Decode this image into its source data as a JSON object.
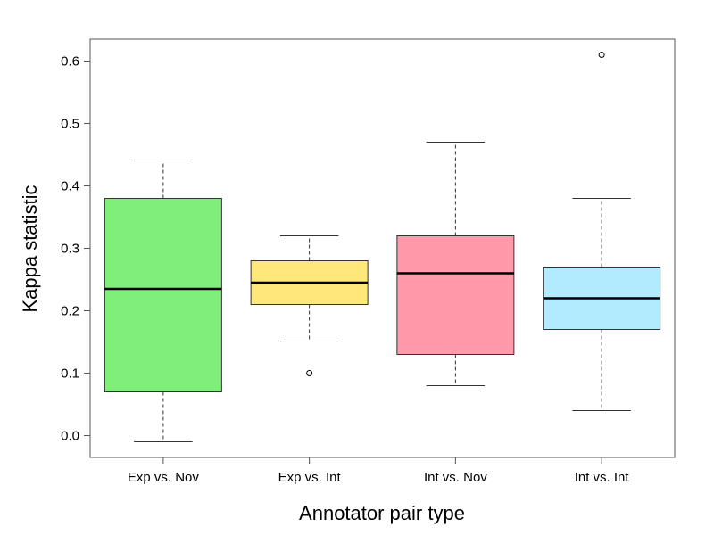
{
  "chart_data": {
    "type": "box",
    "xlabel": "Annotator pair type",
    "ylabel": "Kappa statistic",
    "ylim": [
      -0.035,
      0.635
    ],
    "yticks": [
      0.0,
      0.1,
      0.2,
      0.3,
      0.4,
      0.5,
      0.6
    ],
    "ytick_labels": [
      "0.0",
      "0.1",
      "0.2",
      "0.3",
      "0.4",
      "0.5",
      "0.6"
    ],
    "categories": [
      "Exp vs. Nov",
      "Exp vs. Int",
      "Int vs. Nov",
      "Int vs. Int"
    ],
    "boxes": [
      {
        "category": "Exp vs. Nov",
        "whisker_low": -0.01,
        "q1": 0.07,
        "median": 0.235,
        "q3": 0.38,
        "whisker_high": 0.44,
        "outliers": [],
        "color": "#80ee7b"
      },
      {
        "category": "Exp vs. Int",
        "whisker_low": 0.15,
        "q1": 0.21,
        "median": 0.245,
        "q3": 0.28,
        "whisker_high": 0.32,
        "outliers": [
          0.1
        ],
        "color": "#ffe77b"
      },
      {
        "category": "Int vs. Nov",
        "whisker_low": 0.08,
        "q1": 0.13,
        "median": 0.26,
        "q3": 0.32,
        "whisker_high": 0.47,
        "outliers": [],
        "color": "#ff9aab"
      },
      {
        "category": "Int vs. Int",
        "whisker_low": 0.04,
        "q1": 0.17,
        "median": 0.22,
        "q3": 0.27,
        "whisker_high": 0.38,
        "outliers": [
          0.61
        ],
        "color": "#b2ebfd"
      }
    ],
    "grid": false,
    "legend": "none"
  }
}
